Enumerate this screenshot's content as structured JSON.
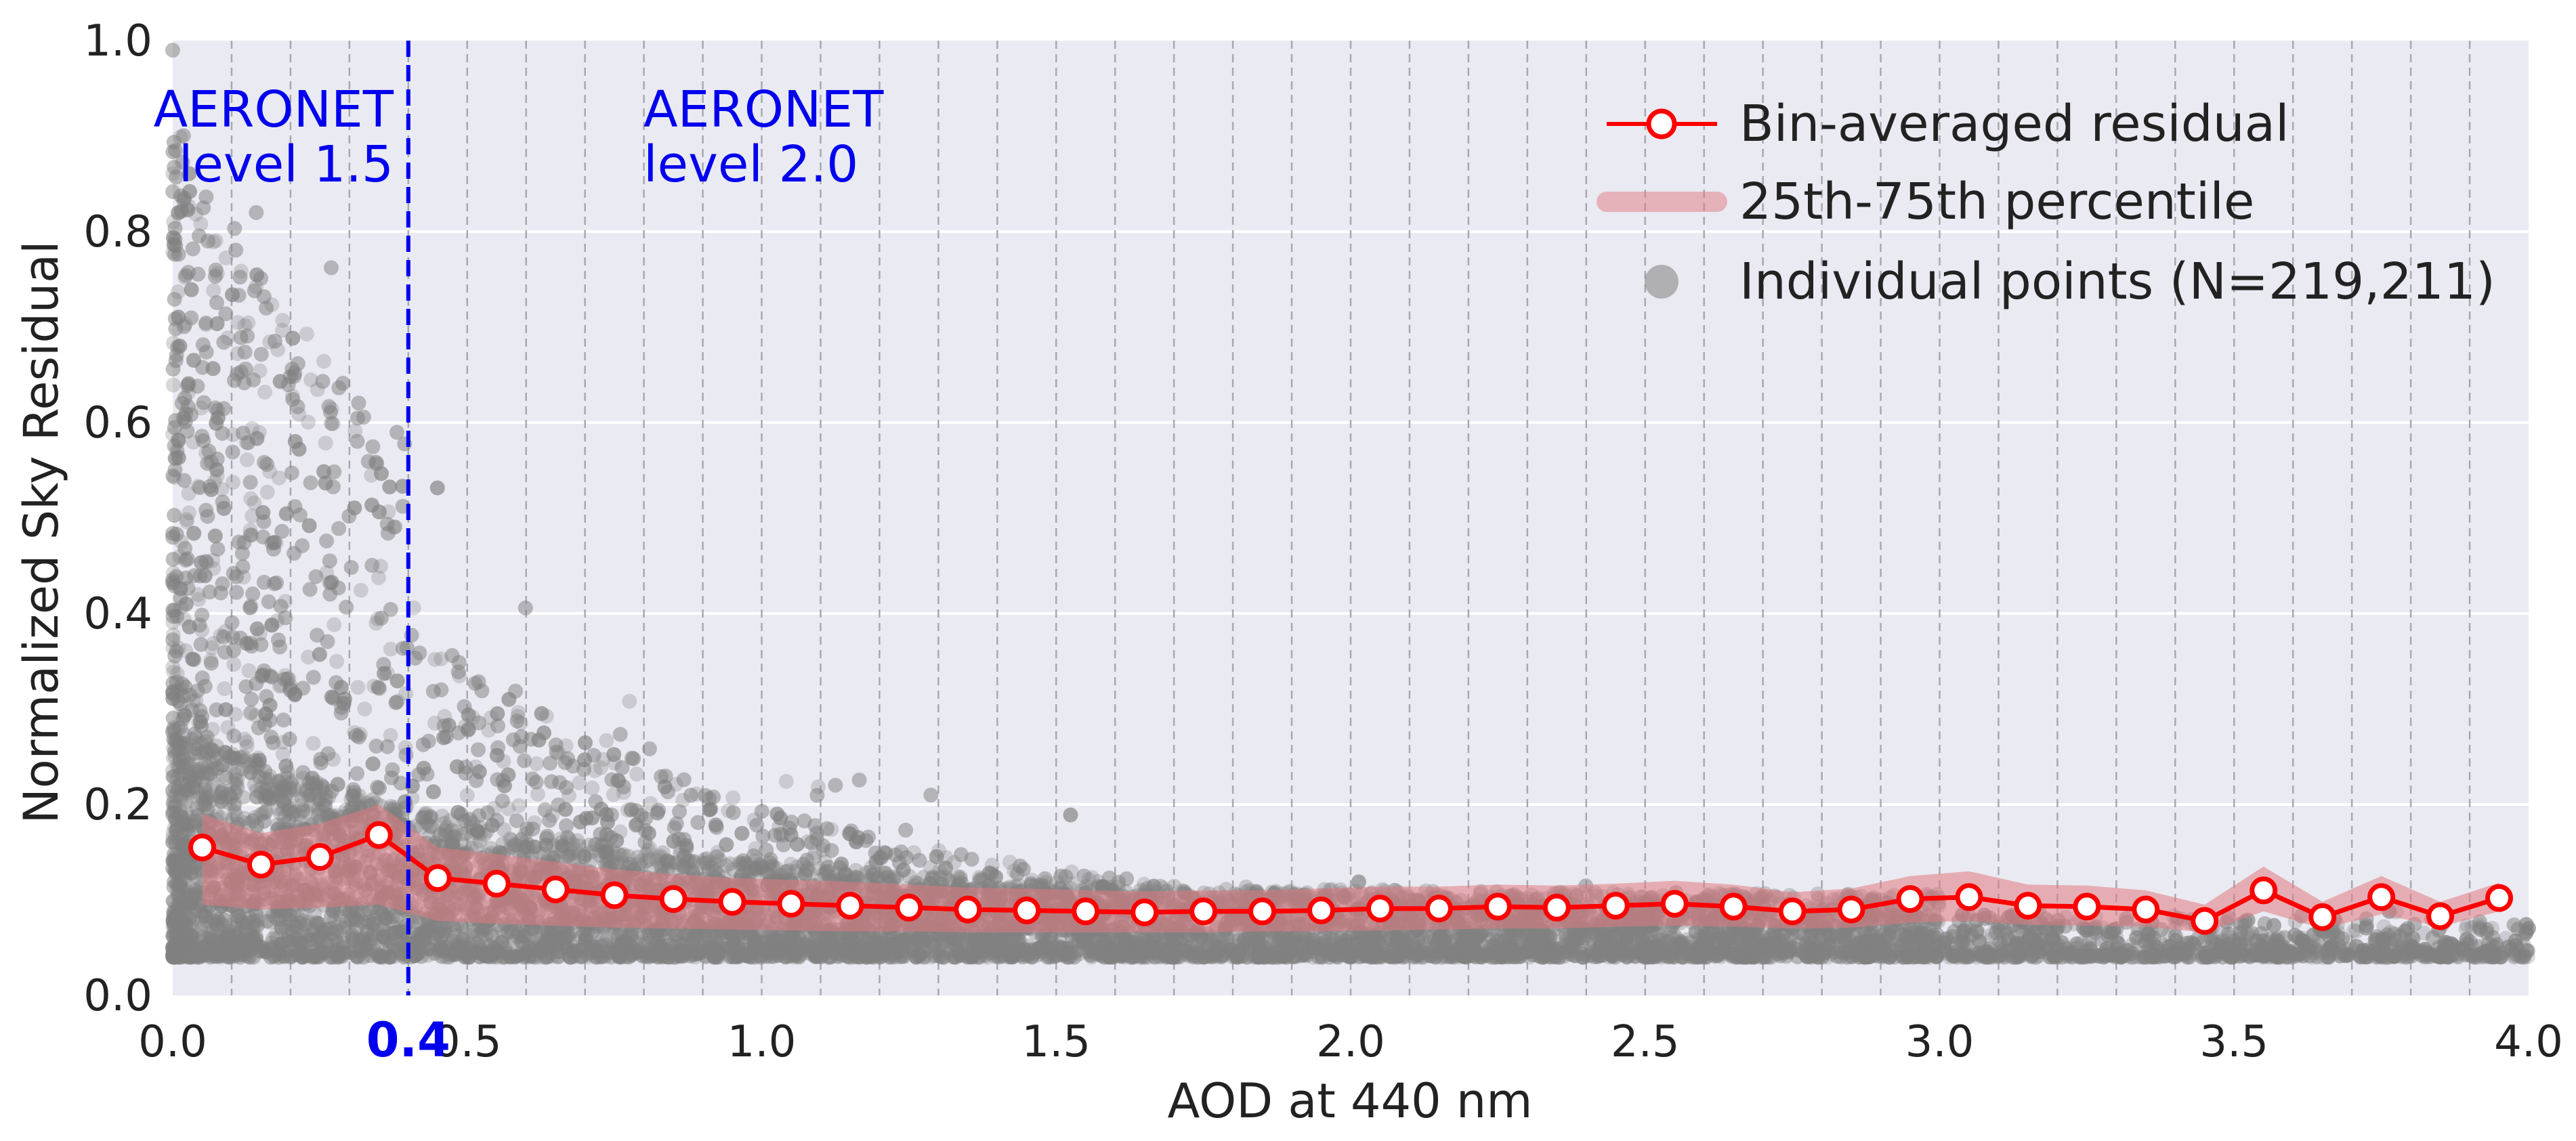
{
  "chart_data": {
    "type": "line",
    "xlabel": "AOD at 440 nm",
    "ylabel": "Normalized Sky Residual",
    "xlim": [
      0.0,
      4.0
    ],
    "ylim": [
      0.0,
      1.0
    ],
    "x_ticks": [
      "0.0",
      "0.5",
      "1.0",
      "1.5",
      "2.0",
      "2.5",
      "3.0",
      "3.5",
      "4.0"
    ],
    "y_ticks": [
      "0.0",
      "0.2",
      "0.4",
      "0.6",
      "0.8",
      "1.0"
    ],
    "highlight_tick": "0.4",
    "threshold_x": 0.4,
    "annotations": {
      "left": [
        "AERONET",
        "level 1.5"
      ],
      "right": [
        "AERONET",
        "level 2.0"
      ]
    },
    "grid": true,
    "legend_position": "top-right",
    "legend": {
      "line": "Bin-averaged residual",
      "band": "25th-75th percentile",
      "points": "Individual points (N=219,211)"
    },
    "colors": {
      "line": "#ff0000",
      "band": "#e07a80",
      "points": "#808080",
      "threshold": "#0000ee",
      "background": "#eaeaf2"
    },
    "series": [
      {
        "name": "Bin-averaged residual",
        "x": [
          0.05,
          0.15,
          0.25,
          0.35,
          0.45,
          0.55,
          0.65,
          0.75,
          0.85,
          0.95,
          1.05,
          1.15,
          1.25,
          1.35,
          1.45,
          1.55,
          1.65,
          1.75,
          1.85,
          1.95,
          2.05,
          2.15,
          2.25,
          2.35,
          2.45,
          2.55,
          2.65,
          2.75,
          2.85,
          2.95,
          3.05,
          3.15,
          3.25,
          3.35,
          3.45,
          3.55,
          3.65,
          3.75,
          3.85,
          3.95
        ],
        "y": [
          0.155,
          0.137,
          0.145,
          0.168,
          0.123,
          0.117,
          0.111,
          0.105,
          0.101,
          0.098,
          0.096,
          0.094,
          0.092,
          0.09,
          0.089,
          0.088,
          0.087,
          0.088,
          0.088,
          0.089,
          0.091,
          0.091,
          0.093,
          0.092,
          0.094,
          0.096,
          0.093,
          0.088,
          0.09,
          0.101,
          0.103,
          0.094,
          0.093,
          0.09,
          0.078,
          0.11,
          0.082,
          0.103,
          0.083,
          0.102
        ]
      },
      {
        "name": "25th-75th percentile",
        "x": [
          0.05,
          0.15,
          0.25,
          0.35,
          0.45,
          0.55,
          0.65,
          0.75,
          0.85,
          0.95,
          1.05,
          1.15,
          1.25,
          1.35,
          1.45,
          1.55,
          1.65,
          1.75,
          1.85,
          1.95,
          2.05,
          2.15,
          2.25,
          2.35,
          2.45,
          2.55,
          2.65,
          2.75,
          2.85,
          2.95,
          3.05,
          3.15,
          3.25,
          3.35,
          3.45,
          3.55,
          3.65,
          3.75,
          3.85,
          3.95
        ],
        "low": [
          0.095,
          0.09,
          0.092,
          0.095,
          0.078,
          0.075,
          0.073,
          0.071,
          0.07,
          0.069,
          0.068,
          0.067,
          0.067,
          0.066,
          0.066,
          0.066,
          0.066,
          0.066,
          0.067,
          0.067,
          0.068,
          0.069,
          0.07,
          0.07,
          0.072,
          0.073,
          0.072,
          0.07,
          0.071,
          0.076,
          0.078,
          0.074,
          0.073,
          0.072,
          0.066,
          0.088,
          0.07,
          0.085,
          0.072,
          0.088
        ],
        "high": [
          0.19,
          0.17,
          0.18,
          0.2,
          0.155,
          0.148,
          0.14,
          0.132,
          0.127,
          0.123,
          0.121,
          0.119,
          0.116,
          0.113,
          0.112,
          0.11,
          0.109,
          0.11,
          0.11,
          0.112,
          0.114,
          0.114,
          0.116,
          0.115,
          0.117,
          0.12,
          0.116,
          0.108,
          0.112,
          0.125,
          0.13,
          0.116,
          0.115,
          0.11,
          0.095,
          0.135,
          0.098,
          0.125,
          0.098,
          0.118
        ]
      }
    ]
  }
}
